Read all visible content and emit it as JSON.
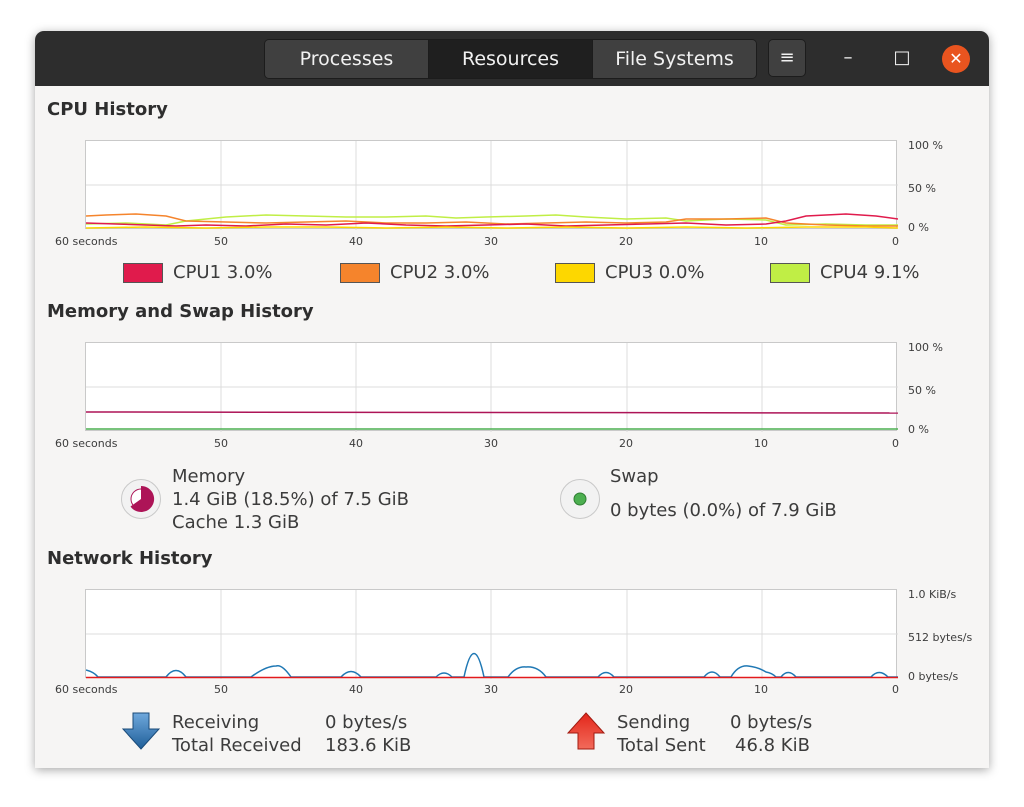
{
  "tabs": [
    {
      "label": "Processes"
    },
    {
      "label": "Resources"
    },
    {
      "label": "File Systems"
    }
  ],
  "window_controls": {
    "menu": "≡",
    "minimize": "–",
    "maximize": "□",
    "close": "✕"
  },
  "cpu": {
    "title": "CPU History",
    "x_ticks": [
      "60 seconds",
      "50",
      "40",
      "30",
      "20",
      "10",
      "0"
    ],
    "y_ticks": [
      "100 %",
      "50 %",
      "0 %"
    ],
    "legend": [
      {
        "name": "CPU1",
        "value": "3.0%",
        "color": "#e01b4c"
      },
      {
        "name": "CPU2",
        "value": "3.0%",
        "color": "#f5842c"
      },
      {
        "name": "CPU3",
        "value": "0.0%",
        "color": "#fdd700"
      },
      {
        "name": "CPU4",
        "value": "9.1%",
        "color": "#c0ee45"
      }
    ]
  },
  "memory": {
    "title": "Memory and Swap History",
    "x_ticks": [
      "60 seconds",
      "50",
      "40",
      "30",
      "20",
      "10",
      "0"
    ],
    "y_ticks": [
      "100 %",
      "50 %",
      "0 %"
    ],
    "memory_label": "Memory",
    "memory_usage": "1.4 GiB (18.5%) of 7.5 GiB",
    "memory_cache": "Cache 1.3 GiB",
    "memory_color": "#ad1457",
    "memory_percent": 18.5,
    "swap_label": "Swap",
    "swap_usage": "0 bytes (0.0%) of 7.9 GiB",
    "swap_color": "#4caf50",
    "swap_percent": 0.0
  },
  "network": {
    "title": "Network History",
    "x_ticks": [
      "60 seconds",
      "50",
      "40",
      "30",
      "20",
      "10",
      "0"
    ],
    "y_ticks": [
      "1.0 KiB/s",
      "512 bytes/s",
      "0 bytes/s"
    ],
    "receiving_label": "Receiving",
    "receiving_value": "0 bytes/s",
    "total_received_label": "Total Received",
    "total_received_value": "183.6 KiB",
    "sending_label": "Sending",
    "sending_value": "0 bytes/s",
    "total_sent_label": "Total Sent",
    "total_sent_value": "46.8 KiB",
    "receive_color": "#1f78b4",
    "send_color": "#e31a1c"
  }
}
